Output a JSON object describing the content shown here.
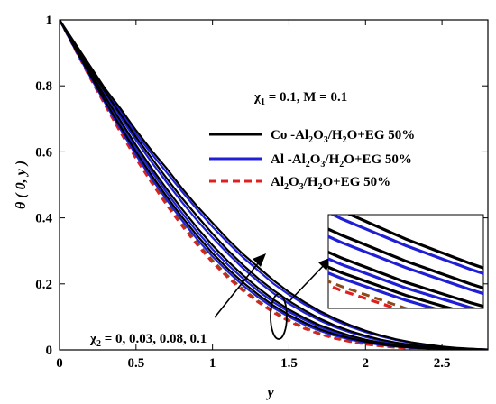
{
  "chart_data": {
    "type": "line",
    "xlabel": "y",
    "ylabel": "θ ( 0, y )",
    "xlim": [
      0,
      2.8
    ],
    "ylim": [
      0,
      1
    ],
    "x_ticks": [
      "0",
      "0.5",
      "1",
      "1.5",
      "2",
      "2.5"
    ],
    "y_ticks": [
      "0",
      "0.2",
      "0.4",
      "0.6",
      "0.8",
      "1"
    ],
    "grid": false,
    "legend_position": "top-right",
    "parameter_annotation": "χ1 = 0.1, M = 0.1",
    "chi2_annotation": "χ2 = 0, 0.03, 0.08, 0.1",
    "x": [
      0,
      0.1,
      0.2,
      0.3,
      0.4,
      0.5,
      0.6,
      0.7,
      0.8,
      0.9,
      1.0,
      1.1,
      1.2,
      1.3,
      1.4,
      1.5,
      1.6,
      1.7,
      1.8,
      1.9,
      2.0,
      2.1,
      2.2,
      2.3,
      2.4,
      2.5,
      2.6,
      2.7,
      2.8
    ],
    "series": [
      {
        "name": "Co -Al2O3/H2O+EG 50%",
        "color": "#000000",
        "style": "solid",
        "curves": [
          [
            1.0,
            0.93,
            0.86,
            0.79,
            0.73,
            0.665,
            0.605,
            0.55,
            0.49,
            0.435,
            0.385,
            0.335,
            0.29,
            0.25,
            0.21,
            0.175,
            0.145,
            0.118,
            0.095,
            0.075,
            0.058,
            0.044,
            0.032,
            0.023,
            0.016,
            0.01,
            0.006,
            0.003,
            0.001
          ],
          [
            1.0,
            0.925,
            0.852,
            0.78,
            0.713,
            0.645,
            0.582,
            0.52,
            0.46,
            0.405,
            0.352,
            0.302,
            0.257,
            0.216,
            0.18,
            0.148,
            0.12,
            0.095,
            0.074,
            0.057,
            0.043,
            0.031,
            0.022,
            0.015,
            0.01,
            0.006,
            0.003,
            0.002,
            0.001
          ],
          [
            1.0,
            0.92,
            0.842,
            0.765,
            0.693,
            0.62,
            0.552,
            0.488,
            0.427,
            0.37,
            0.317,
            0.269,
            0.226,
            0.187,
            0.152,
            0.122,
            0.097,
            0.075,
            0.058,
            0.043,
            0.031,
            0.022,
            0.015,
            0.01,
            0.006,
            0.004,
            0.002,
            0.001,
            0.0
          ],
          [
            1.0,
            0.915,
            0.833,
            0.752,
            0.675,
            0.6,
            0.53,
            0.465,
            0.403,
            0.346,
            0.293,
            0.246,
            0.204,
            0.167,
            0.134,
            0.106,
            0.083,
            0.063,
            0.047,
            0.035,
            0.025,
            0.017,
            0.011,
            0.007,
            0.004,
            0.003,
            0.001,
            0.001,
            0.0
          ]
        ]
      },
      {
        "name": "Al -Al2O3/H2O+EG 50%",
        "color": "#1f1fd6",
        "style": "solid",
        "curves": [
          [
            1.0,
            0.928,
            0.856,
            0.784,
            0.722,
            0.655,
            0.595,
            0.538,
            0.48,
            0.425,
            0.373,
            0.325,
            0.28,
            0.24,
            0.2,
            0.167,
            0.138,
            0.112,
            0.089,
            0.07,
            0.054,
            0.041,
            0.03,
            0.021,
            0.014,
            0.009,
            0.005,
            0.003,
            0.001
          ],
          [
            1.0,
            0.922,
            0.848,
            0.775,
            0.705,
            0.635,
            0.57,
            0.508,
            0.448,
            0.392,
            0.34,
            0.292,
            0.247,
            0.207,
            0.171,
            0.14,
            0.113,
            0.089,
            0.069,
            0.053,
            0.039,
            0.028,
            0.02,
            0.014,
            0.009,
            0.005,
            0.003,
            0.001,
            0.0
          ],
          [
            1.0,
            0.917,
            0.838,
            0.76,
            0.685,
            0.61,
            0.542,
            0.477,
            0.415,
            0.358,
            0.305,
            0.258,
            0.216,
            0.178,
            0.144,
            0.115,
            0.091,
            0.07,
            0.053,
            0.039,
            0.028,
            0.02,
            0.013,
            0.009,
            0.005,
            0.003,
            0.002,
            0.001,
            0.0
          ],
          [
            1.0,
            0.912,
            0.828,
            0.746,
            0.667,
            0.59,
            0.52,
            0.455,
            0.393,
            0.335,
            0.283,
            0.237,
            0.195,
            0.159,
            0.127,
            0.1,
            0.077,
            0.058,
            0.043,
            0.031,
            0.022,
            0.015,
            0.01,
            0.006,
            0.004,
            0.002,
            0.001,
            0.0,
            0.0
          ]
        ]
      },
      {
        "name": "Al2O3/H2O+EG 50%",
        "color": "#e02020",
        "style": "dashed",
        "curves": [
          [
            1.0,
            0.91,
            0.822,
            0.738,
            0.656,
            0.578,
            0.506,
            0.438,
            0.375,
            0.317,
            0.264,
            0.218,
            0.178,
            0.143,
            0.112,
            0.086,
            0.064,
            0.047,
            0.034,
            0.024,
            0.016,
            0.011,
            0.007,
            0.004,
            0.002,
            0.001,
            0.001,
            0.0,
            0.0
          ]
        ]
      }
    ],
    "chi2_trend_curve": {
      "color": "#8b4a1c",
      "style": "dashed",
      "values": [
        1.0,
        0.912,
        0.826,
        0.742,
        0.662,
        0.585,
        0.513,
        0.446,
        0.383,
        0.325,
        0.272,
        0.225,
        0.184,
        0.148,
        0.117,
        0.09,
        0.068,
        0.05,
        0.036,
        0.025,
        0.017,
        0.011,
        0.007,
        0.004,
        0.002,
        0.001,
        0.001,
        0.0,
        0.0
      ]
    }
  }
}
